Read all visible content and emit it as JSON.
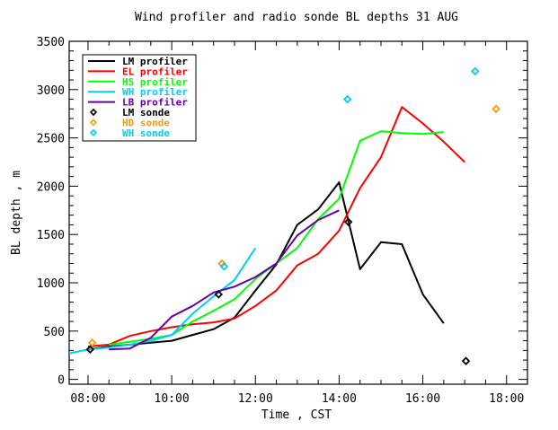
{
  "chart_data": {
    "type": "line",
    "title": "Wind profiler and radio sonde BL depths  31 AUG",
    "xlabel": "Time , CST",
    "ylabel": "BL depth , m",
    "xlim": [
      7.55,
      18.5
    ],
    "ylim": [
      -50,
      3500
    ],
    "x_tick_values": [
      8,
      10,
      12,
      14,
      16,
      18
    ],
    "x_tick_labels": [
      "08:00",
      "10:00",
      "12:00",
      "14:00",
      "16:00",
      "18:00"
    ],
    "y_tick_values": [
      0,
      500,
      1000,
      1500,
      2000,
      2500,
      3000,
      3500
    ],
    "y_tick_labels": [
      "0",
      "500",
      "1000",
      "1500",
      "2000",
      "2500",
      "3000",
      "3500"
    ],
    "grid": false,
    "legend_position": "top-left",
    "series": [
      {
        "name": "LM profiler",
        "kind": "line",
        "color": "#000000",
        "x": [
          8.0,
          8.5,
          9.0,
          9.5,
          10.0,
          10.5,
          11.0,
          11.5,
          12.0,
          12.5,
          13.0,
          13.5,
          14.0,
          14.5,
          15.0,
          15.5,
          16.0,
          16.5
        ],
        "y": [
          310,
          340,
          360,
          380,
          400,
          460,
          520,
          640,
          920,
          1190,
          1600,
          1760,
          2040,
          1140,
          1420,
          1400,
          880,
          580
        ]
      },
      {
        "name": "EL profiler",
        "kind": "line",
        "color": "#ff0000",
        "x": [
          8.0,
          8.5,
          9.0,
          9.5,
          10.0,
          10.5,
          11.0,
          11.5,
          12.0,
          12.5,
          13.0,
          13.5,
          14.0,
          14.5,
          15.0,
          15.5,
          16.0,
          16.5,
          17.0
        ],
        "y": [
          340,
          360,
          450,
          500,
          540,
          570,
          590,
          630,
          760,
          920,
          1180,
          1300,
          1540,
          1980,
          2300,
          2820,
          2650,
          2460,
          2250
        ]
      },
      {
        "name": "HS profiler",
        "kind": "line",
        "color": "#00ff00",
        "x": [
          8.5,
          9.0,
          9.5,
          10.0,
          10.5,
          11.0,
          11.5,
          12.0,
          12.5,
          13.0,
          13.5,
          14.0,
          14.5,
          15.0,
          15.5,
          16.0,
          16.5
        ],
        "y": [
          360,
          390,
          420,
          460,
          600,
          710,
          830,
          1040,
          1200,
          1360,
          1660,
          1870,
          2470,
          2570,
          2550,
          2540,
          2560
        ]
      },
      {
        "name": "WH profiler",
        "kind": "line",
        "color": "#00ccff",
        "x": [
          7.55,
          8.0,
          8.5,
          9.0,
          9.5,
          10.0,
          10.5,
          11.0,
          11.5,
          12.0
        ],
        "y": [
          270,
          310,
          330,
          360,
          400,
          460,
          680,
          860,
          1030,
          1360
        ]
      },
      {
        "name": "LB profiler",
        "kind": "line",
        "color": "#6600aa",
        "x": [
          8.5,
          9.0,
          9.5,
          10.0,
          10.5,
          11.0,
          11.5,
          12.0,
          12.5,
          13.0,
          13.5,
          14.0
        ],
        "y": [
          310,
          320,
          430,
          650,
          760,
          900,
          960,
          1060,
          1200,
          1490,
          1650,
          1750
        ]
      },
      {
        "name": "LM sonde",
        "kind": "marker",
        "color": "#000000",
        "x": [
          8.05,
          11.12,
          14.22,
          17.03
        ],
        "y": [
          310,
          880,
          1630,
          190
        ]
      },
      {
        "name": "HD sonde",
        "kind": "marker",
        "color": "#ff9900",
        "x": [
          8.1,
          11.2,
          17.75
        ],
        "y": [
          380,
          1200,
          2800
        ]
      },
      {
        "name": "WH sonde",
        "kind": "marker",
        "color": "#00ccff",
        "x": [
          11.25,
          14.2,
          17.25
        ],
        "y": [
          1170,
          2900,
          3190
        ]
      }
    ]
  }
}
